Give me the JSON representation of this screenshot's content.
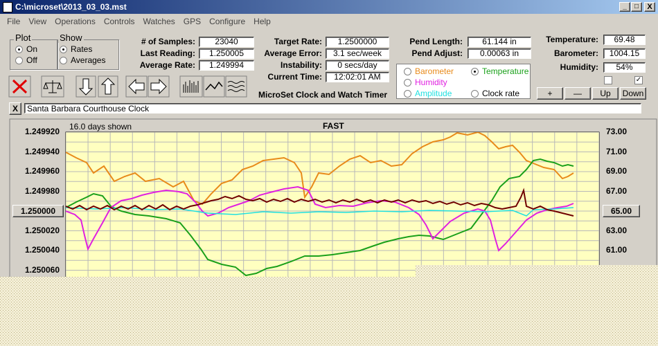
{
  "window": {
    "title": "C:\\microset\\2013_03_03.mst"
  },
  "menu": [
    "File",
    "View",
    "Operations",
    "Controls",
    "Watches",
    "GPS",
    "Configure",
    "Help"
  ],
  "plot_group": {
    "label": "Plot",
    "options": [
      "On",
      "Off"
    ]
  },
  "show_group": {
    "label": "Show",
    "options": [
      "Rates",
      "Averages"
    ]
  },
  "fields": [
    {
      "label": "# of Samples:",
      "value": "23040"
    },
    {
      "label": "Last Reading:",
      "value": "1.250005"
    },
    {
      "label": "Average Rate:",
      "value": "1.249994"
    },
    {
      "label": "Target Rate:",
      "value": "1.2500000"
    },
    {
      "label": "Average Error:",
      "value": "3.1 sec/week"
    },
    {
      "label": "Instability:",
      "value": "0 secs/day"
    },
    {
      "label": "Current Time:",
      "value": "12:02:01 AM"
    },
    {
      "label": "Pend Length:",
      "value": "61.144 in"
    },
    {
      "label": "Pend Adjust:",
      "value": "0.00063 in"
    },
    {
      "label": "Temperature:",
      "value": "69.48"
    },
    {
      "label": "Barometer:",
      "value": "1004.15"
    },
    {
      "label": "Humidity:",
      "value": "54%"
    }
  ],
  "legend": [
    "Barometer",
    "Temperature",
    "Humidity",
    "Amplitude",
    "Clock rate"
  ],
  "buttons": [
    "+",
    "—",
    "Up",
    "Down"
  ],
  "app_name": "MicroSet Clock and Watch Timer",
  "clock_name": "Santa Barbara Courthouse Clock",
  "graph": {
    "days": "16.0 days shown",
    "status": "FAST",
    "left_axis": [
      "1.249920",
      "1.249940",
      "1.249960",
      "1.249980",
      "1.250000",
      "1.250020",
      "1.250040",
      "1.250060"
    ],
    "right_axis": [
      "73.00",
      "71.00",
      "69.00",
      "67.00",
      "65.00",
      "63.00",
      "61.00"
    ]
  }
}
